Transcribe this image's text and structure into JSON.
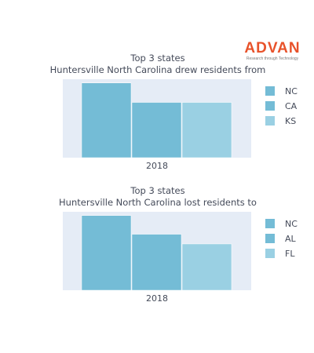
{
  "brand": {
    "name": "ADVAN",
    "tagline": "Research through Technology"
  },
  "chart_data": [
    {
      "type": "bar",
      "title_lines": [
        "Top 3 states",
        "Huntersville North Carolina drew residents from"
      ],
      "categories": [
        "2018"
      ],
      "series": [
        {
          "name": "NC",
          "values": [
            100
          ],
          "color": "#74bcd6"
        },
        {
          "name": "CA",
          "values": [
            74
          ],
          "color": "#74bcd6"
        },
        {
          "name": "KS",
          "values": [
            74
          ],
          "color": "#9ad0e3"
        }
      ],
      "ylim": [
        0,
        105
      ],
      "grid": false,
      "legend": "right",
      "plot_background": "#e5ecf6"
    },
    {
      "type": "bar",
      "title_lines": [
        "Top 3 states",
        "Huntersville North Carolina lost residents to"
      ],
      "categories": [
        "2018"
      ],
      "series": [
        {
          "name": "NC",
          "values": [
            100
          ],
          "color": "#74bcd6"
        },
        {
          "name": "AL",
          "values": [
            75
          ],
          "color": "#74bcd6"
        },
        {
          "name": "FL",
          "values": [
            62
          ],
          "color": "#9ad0e3"
        }
      ],
      "ylim": [
        0,
        105
      ],
      "grid": false,
      "legend": "right",
      "plot_background": "#e5ecf6"
    }
  ]
}
